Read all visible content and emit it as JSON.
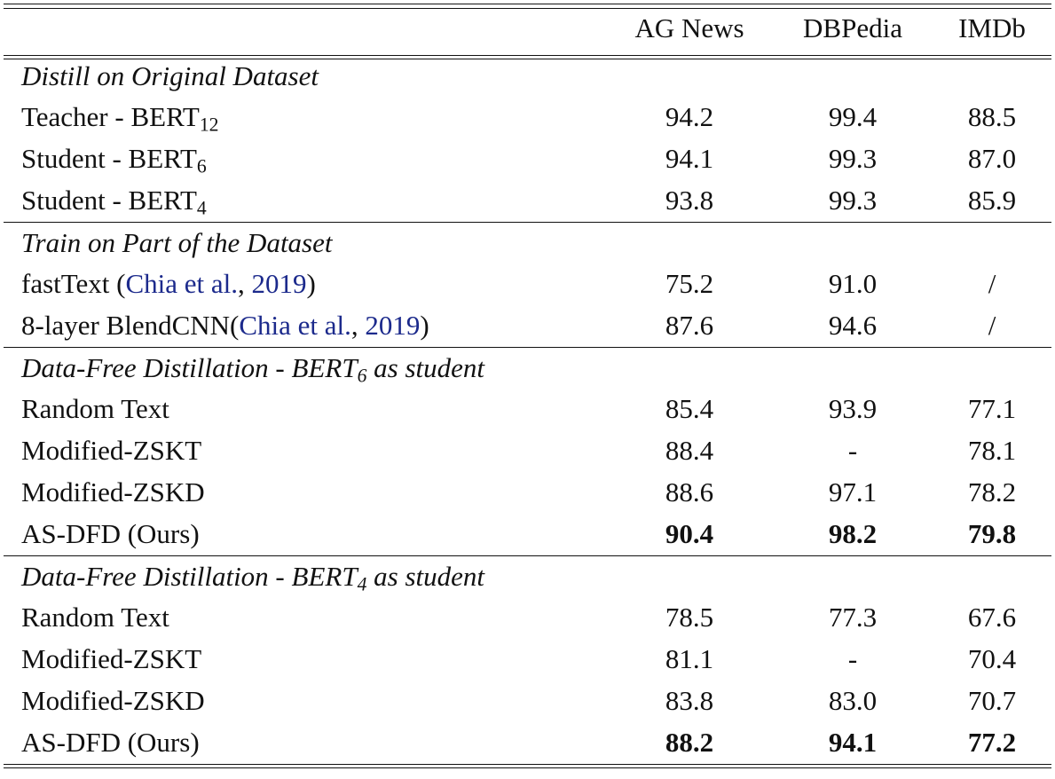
{
  "table": {
    "header": [
      "AG News",
      "DBPedia",
      "IMDb"
    ],
    "sections": [
      {
        "title": [
          {
            "text": "Distill on Original Dataset"
          }
        ],
        "rows": [
          {
            "label": [
              {
                "text": "Teacher - BERT"
              },
              {
                "text": "12",
                "sub": true
              }
            ],
            "cells": [
              "94.2",
              "99.4",
              "88.5"
            ]
          },
          {
            "label": [
              {
                "text": "Student - BERT"
              },
              {
                "text": "6",
                "sub": true
              }
            ],
            "cells": [
              "94.1",
              "99.3",
              "87.0"
            ]
          },
          {
            "label": [
              {
                "text": "Student - BERT"
              },
              {
                "text": "4",
                "sub": true
              }
            ],
            "cells": [
              "93.8",
              "99.3",
              "85.9"
            ]
          }
        ]
      },
      {
        "title": [
          {
            "text": "Train on Part of the Dataset"
          }
        ],
        "rows": [
          {
            "label": [
              {
                "text": "fastText ("
              },
              {
                "text": "Chia et al.",
                "cite": true
              },
              {
                "text": ", "
              },
              {
                "text": "2019",
                "cite": true
              },
              {
                "text": ")"
              }
            ],
            "cells": [
              "75.2",
              "91.0",
              "/"
            ]
          },
          {
            "label": [
              {
                "text": "8-layer BlendCNN("
              },
              {
                "text": "Chia et al.",
                "cite": true
              },
              {
                "text": ", "
              },
              {
                "text": "2019",
                "cite": true
              },
              {
                "text": ")"
              }
            ],
            "cells": [
              "87.6",
              "94.6",
              "/"
            ]
          }
        ]
      },
      {
        "title": [
          {
            "text": "Data-Free Distillation - BERT"
          },
          {
            "text": "6",
            "sub": true
          },
          {
            "text": " as student"
          }
        ],
        "rows": [
          {
            "label": [
              {
                "text": "Random Text"
              }
            ],
            "cells": [
              "85.4",
              "93.9",
              "77.1"
            ]
          },
          {
            "label": [
              {
                "text": "Modified-ZSKT"
              }
            ],
            "cells": [
              "88.4",
              "-",
              "78.1"
            ]
          },
          {
            "label": [
              {
                "text": "Modified-ZSKD"
              }
            ],
            "cells": [
              "88.6",
              "97.1",
              "78.2"
            ]
          },
          {
            "label": [
              {
                "text": "AS-DFD (Ours)"
              }
            ],
            "cells": [
              "90.4",
              "98.2",
              "79.8"
            ],
            "bold": true
          }
        ]
      },
      {
        "title": [
          {
            "text": "Data-Free Distillation - BERT"
          },
          {
            "text": "4",
            "sub": true
          },
          {
            "text": " as student"
          }
        ],
        "rows": [
          {
            "label": [
              {
                "text": "Random Text"
              }
            ],
            "cells": [
              "78.5",
              "77.3",
              "67.6"
            ]
          },
          {
            "label": [
              {
                "text": "Modified-ZSKT"
              }
            ],
            "cells": [
              "81.1",
              "-",
              "70.4"
            ]
          },
          {
            "label": [
              {
                "text": "Modified-ZSKD"
              }
            ],
            "cells": [
              "83.8",
              "83.0",
              "70.7"
            ]
          },
          {
            "label": [
              {
                "text": "AS-DFD (Ours)"
              }
            ],
            "cells": [
              "88.2",
              "94.1",
              "77.2"
            ],
            "bold": true
          }
        ]
      }
    ]
  }
}
